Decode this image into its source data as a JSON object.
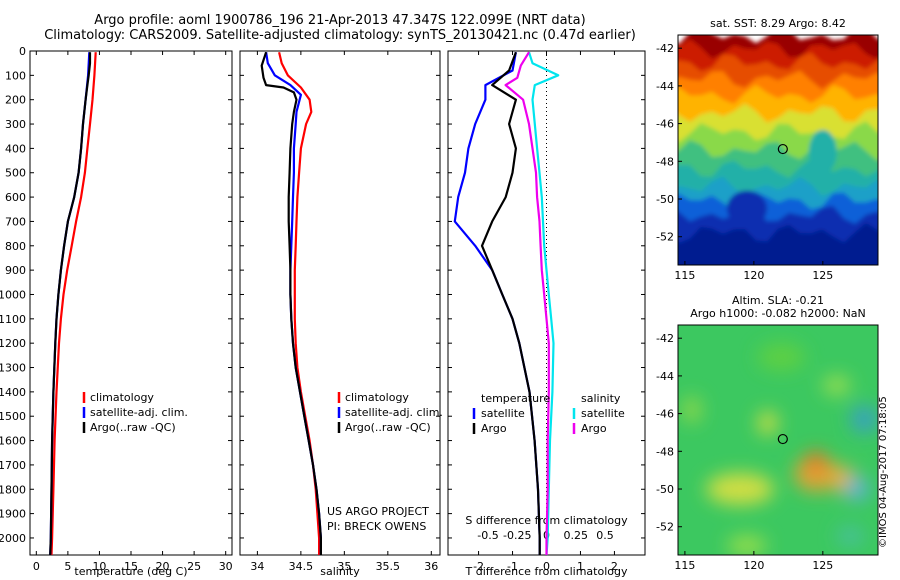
{
  "title_line1": "Argo profile: aoml 1900786_196 21-Apr-2013 47.347S 122.099E (NRT data)",
  "title_line2": "Climatology: CARS2009. Satellite-adjusted climatology: synTS_20130421.nc (0.47d earlier)",
  "side_note": "©IMOS 04-Aug-2017 07:18:05",
  "project_line1": "US ARGO PROJECT",
  "project_line2": "PI: BRECK OWENS",
  "colors": {
    "climatology": "#ff0000",
    "satellite": "#0000ff",
    "argo": "#000000",
    "salinity_sat": "#00e5ee",
    "salinity_argo": "#ee00ee"
  },
  "chart_data": [
    {
      "type": "line",
      "xlabel": "temperature (deg C)",
      "ylabel": "",
      "xlim": [
        -1,
        31
      ],
      "ylim": [
        2070,
        0
      ],
      "xticks": [
        0,
        5,
        10,
        15,
        20,
        25,
        30
      ],
      "yticks": [
        0,
        100,
        200,
        300,
        400,
        500,
        600,
        700,
        800,
        900,
        1000,
        1100,
        1200,
        1300,
        1400,
        1500,
        1600,
        1700,
        1800,
        1900,
        2000
      ],
      "legend": [
        "climatology",
        "satellite-adj. clim.",
        "Argo(..raw -QC)"
      ],
      "series": [
        {
          "name": "climatology",
          "depth": [
            5,
            100,
            200,
            300,
            400,
            500,
            600,
            700,
            800,
            900,
            1000,
            1100,
            1200,
            1400,
            1600,
            1800,
            2000,
            2070
          ],
          "values": [
            9.4,
            9.2,
            8.9,
            8.5,
            8.1,
            7.7,
            7.1,
            6.3,
            5.6,
            4.9,
            4.3,
            3.9,
            3.6,
            3.2,
            2.9,
            2.7,
            2.5,
            2.4
          ]
        },
        {
          "name": "satellite-adj. clim.",
          "depth": [
            5,
            100,
            200,
            300,
            400,
            500,
            600,
            700,
            800,
            900,
            1000,
            1100,
            1200,
            1400,
            1600,
            1800,
            2000,
            2070
          ],
          "values": [
            8.4,
            8.2,
            7.8,
            7.4,
            7.1,
            6.7,
            6.0,
            5.0,
            4.4,
            3.9,
            3.5,
            3.2,
            3.0,
            2.7,
            2.5,
            2.4,
            2.3,
            2.2
          ]
        },
        {
          "name": "Argo(..raw -QC)",
          "depth": [
            5,
            50,
            100,
            140,
            200,
            300,
            400,
            500,
            600,
            700,
            800,
            900,
            1000,
            1100,
            1200,
            1400,
            1600,
            1800,
            2000,
            2070
          ],
          "values": [
            8.5,
            8.5,
            8.3,
            8.1,
            7.8,
            7.4,
            7.1,
            6.7,
            6.0,
            5.0,
            4.4,
            3.9,
            3.5,
            3.2,
            3.0,
            2.7,
            2.5,
            2.4,
            2.3,
            2.2
          ]
        }
      ]
    },
    {
      "type": "line",
      "xlabel": "salinity",
      "xlim": [
        33.8,
        36.1
      ],
      "ylim": [
        2070,
        0
      ],
      "xticks": [
        34,
        34.5,
        35,
        35.5,
        36
      ],
      "legend": [
        "climatology",
        "satellite-adj. clim.",
        "Argo(..raw -QC)"
      ],
      "series": [
        {
          "name": "climatology",
          "depth": [
            5,
            50,
            100,
            150,
            200,
            250,
            300,
            400,
            500,
            600,
            700,
            800,
            900,
            1000,
            1100,
            1200,
            1300,
            1400,
            1500,
            1600,
            1700,
            1800,
            1900,
            2000,
            2070
          ],
          "values": [
            34.25,
            34.28,
            34.35,
            34.5,
            34.6,
            34.62,
            34.56,
            34.5,
            34.48,
            34.46,
            34.45,
            34.44,
            34.43,
            34.43,
            34.43,
            34.44,
            34.46,
            34.5,
            34.55,
            34.6,
            34.64,
            34.67,
            34.69,
            34.71,
            34.71
          ]
        },
        {
          "name": "satellite-adj. clim.",
          "depth": [
            5,
            50,
            100,
            140,
            180,
            250,
            300,
            400,
            500,
            600,
            700,
            800,
            900,
            1000,
            1100,
            1200,
            1300,
            1400,
            1500,
            1600,
            1700,
            1800,
            1900,
            2000,
            2070
          ],
          "values": [
            34.1,
            34.12,
            34.2,
            34.38,
            34.5,
            34.45,
            34.44,
            34.42,
            34.42,
            34.41,
            34.4,
            34.39,
            34.38,
            34.38,
            34.39,
            34.41,
            34.44,
            34.49,
            34.54,
            34.59,
            34.64,
            34.68,
            34.71,
            34.73,
            34.73
          ]
        },
        {
          "name": "Argo(..raw -QC)",
          "depth": [
            5,
            60,
            110,
            140,
            150,
            170,
            200,
            250,
            300,
            400,
            500,
            600,
            700,
            800,
            900,
            1000,
            1100,
            1200,
            1300,
            1400,
            1500,
            1600,
            1700,
            1800,
            1900,
            2000,
            2070
          ],
          "values": [
            34.1,
            34.05,
            34.07,
            34.1,
            34.3,
            34.42,
            34.45,
            34.42,
            34.4,
            34.38,
            34.37,
            34.36,
            34.36,
            34.37,
            34.38,
            34.38,
            34.39,
            34.41,
            34.44,
            34.49,
            34.54,
            34.59,
            34.64,
            34.68,
            34.71,
            34.73,
            34.73
          ]
        }
      ]
    },
    {
      "type": "line",
      "xlabel": "T difference from climatology",
      "x2label": "S difference from climatology",
      "xlim": [
        -2.9,
        2.9
      ],
      "ylim": [
        2070,
        0
      ],
      "xticks": [
        -2,
        -1,
        0,
        1,
        2
      ],
      "x2ticks": [
        -0.5,
        -0.25,
        0,
        0.25,
        0.5
      ],
      "legend_headers": [
        "temperature",
        "salinity"
      ],
      "legend": [
        "satellite",
        "Argo",
        "satellite",
        "Argo"
      ],
      "series": [
        {
          "name": "satellite",
          "group": "temperature",
          "depth": [
            5,
            80,
            140,
            200,
            300,
            400,
            500,
            600,
            700,
            800,
            900,
            1000,
            1100,
            1200,
            1400,
            1600,
            1800,
            2000,
            2070
          ],
          "values": [
            -0.9,
            -1.0,
            -1.8,
            -1.8,
            -2.1,
            -2.3,
            -2.4,
            -2.6,
            -2.7,
            -2.1,
            -1.6,
            -1.3,
            -1.0,
            -0.8,
            -0.5,
            -0.35,
            -0.25,
            -0.2,
            -0.2
          ]
        },
        {
          "name": "Argo",
          "group": "temperature",
          "depth": [
            5,
            80,
            140,
            200,
            300,
            400,
            500,
            600,
            700,
            800,
            900,
            1000,
            1100,
            1200,
            1400,
            1600,
            1800,
            2000,
            2070
          ],
          "values": [
            -0.9,
            -1.1,
            -1.6,
            -0.9,
            -1.1,
            -0.9,
            -1.0,
            -1.2,
            -1.6,
            -1.9,
            -1.6,
            -1.3,
            -1.0,
            -0.8,
            -0.5,
            -0.35,
            -0.25,
            -0.2,
            -0.2
          ]
        },
        {
          "name": "satellite",
          "group": "salinity",
          "depth": [
            5,
            50,
            100,
            140,
            200,
            300,
            400,
            500,
            600,
            700,
            800,
            900,
            1000,
            1100,
            1200,
            1400,
            1600,
            1800,
            2000,
            2070
          ],
          "values": [
            -0.15,
            -0.12,
            0.1,
            -0.1,
            -0.12,
            -0.1,
            -0.08,
            -0.06,
            -0.04,
            -0.03,
            -0.02,
            0.0,
            0.02,
            0.04,
            0.06,
            0.05,
            0.03,
            0.02,
            0.01,
            0.0
          ]
        },
        {
          "name": "Argo",
          "group": "salinity",
          "depth": [
            5,
            60,
            110,
            140,
            200,
            300,
            400,
            500,
            600,
            700,
            800,
            900,
            1000,
            1100,
            1200,
            1400,
            1600,
            1800,
            2000,
            2070
          ],
          "values": [
            -0.15,
            -0.22,
            -0.25,
            -0.35,
            -0.2,
            -0.15,
            -0.12,
            -0.09,
            -0.08,
            -0.06,
            -0.05,
            -0.04,
            -0.02,
            0.0,
            0.02,
            0.02,
            0.01,
            0.01,
            0.0,
            0.0
          ]
        }
      ]
    },
    {
      "type": "heatmap",
      "title": "sat. SST: 8.29 Argo: 8.42",
      "xlim": [
        114.5,
        129
      ],
      "ylim": [
        -53.5,
        -41.3
      ],
      "xticks": [
        115,
        120,
        125
      ],
      "yticks": [
        -42,
        -44,
        -46,
        -48,
        -50,
        -52
      ],
      "marker": {
        "lon": 122.1,
        "lat": -47.35
      }
    },
    {
      "type": "heatmap",
      "title": "Altim. SLA: -0.21",
      "subtitle": "Argo h1000: -0.082 h2000: NaN",
      "xlim": [
        114.5,
        129
      ],
      "ylim": [
        -53.5,
        -41.3
      ],
      "xticks": [
        115,
        120,
        125
      ],
      "yticks": [
        -42,
        -44,
        -46,
        -48,
        -50,
        -52
      ],
      "marker": {
        "lon": 122.1,
        "lat": -47.35
      }
    }
  ]
}
